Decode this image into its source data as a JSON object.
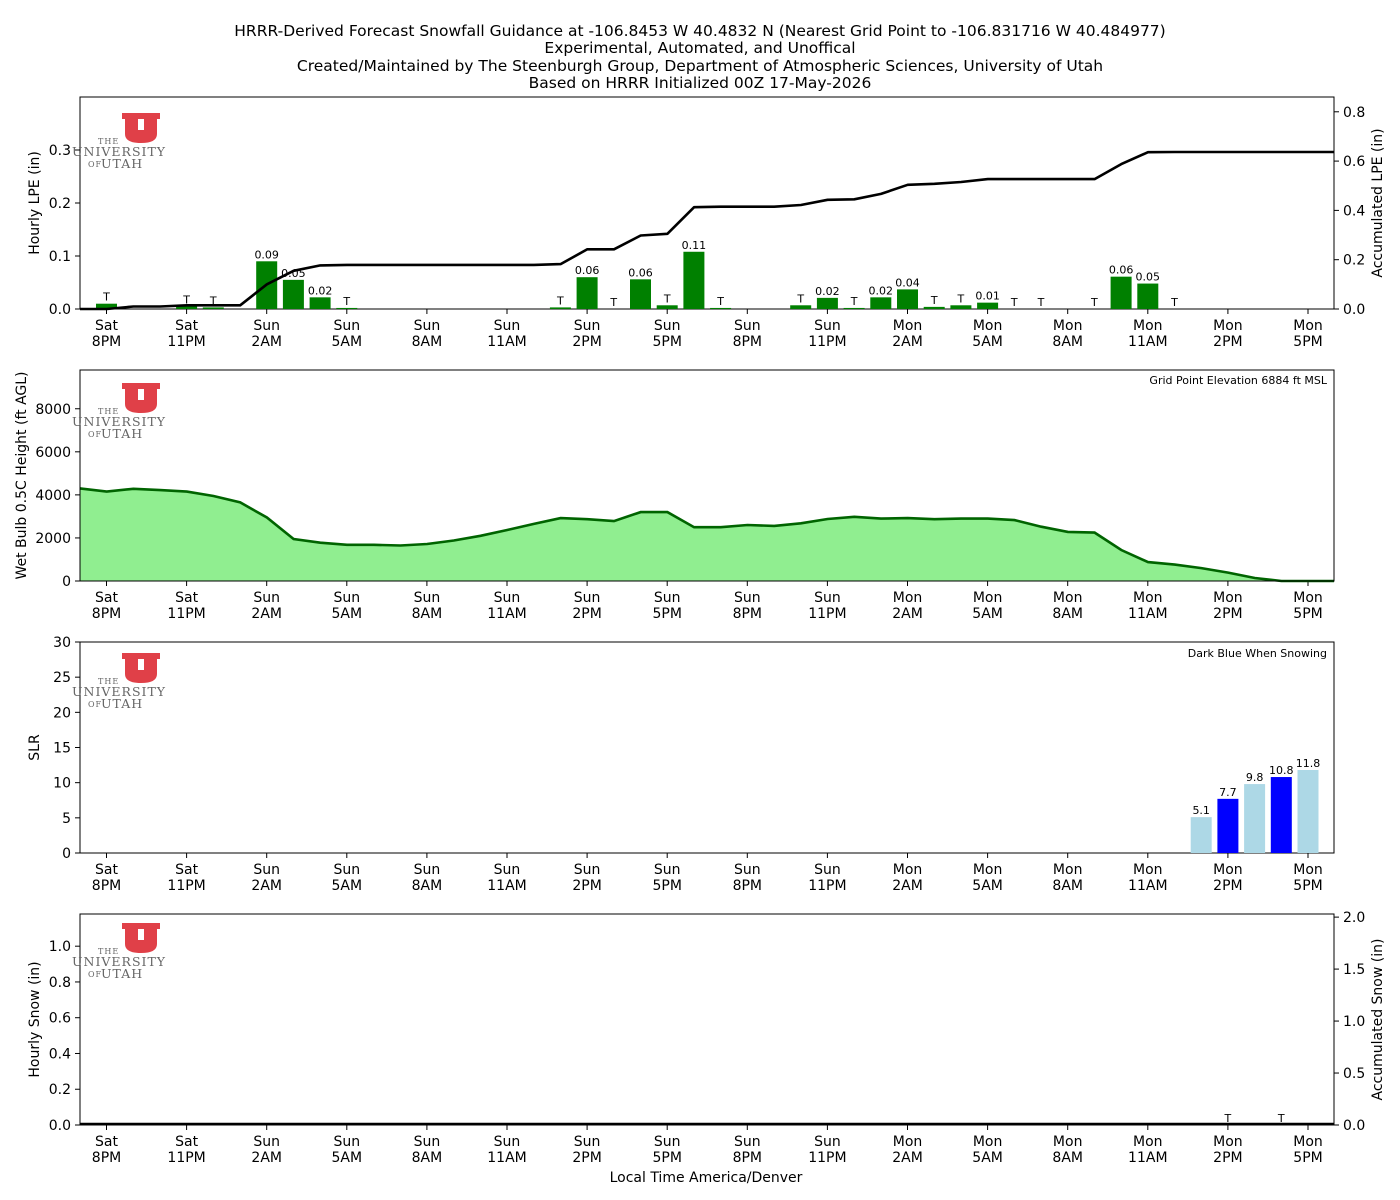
{
  "title_lines": [
    "HRRR-Derived Forecast Snowfall Guidance at -106.8453 W 40.4832 N (Nearest Grid Point to -106.831716 W 40.484977)",
    "Experimental, Automated, and Unoffical",
    "Created/Maintained by The Steenburgh Group, Department of Atmospheric Sciences, University of Utah",
    "Based on HRRR Initialized 00Z 17-May-2026"
  ],
  "logo": {
    "text_the": "THE",
    "text_university": "UNIVERSITY",
    "text_of": "OF",
    "text_utah": "UTAH",
    "color": "#e04048"
  },
  "x_tick_labels": [
    [
      "Sat",
      "8PM"
    ],
    [
      "Sat",
      "11PM"
    ],
    [
      "Sun",
      "2AM"
    ],
    [
      "Sun",
      "5AM"
    ],
    [
      "Sun",
      "8AM"
    ],
    [
      "Sun",
      "11AM"
    ],
    [
      "Sun",
      "2PM"
    ],
    [
      "Sun",
      "5PM"
    ],
    [
      "Sun",
      "8PM"
    ],
    [
      "Sun",
      "11PM"
    ],
    [
      "Mon",
      "2AM"
    ],
    [
      "Mon",
      "5AM"
    ],
    [
      "Mon",
      "8AM"
    ],
    [
      "Mon",
      "11AM"
    ],
    [
      "Mon",
      "2PM"
    ],
    [
      "Mon",
      "5PM"
    ]
  ],
  "x_axis_label": "Local Time America/Denver",
  "colors": {
    "lpe_bar": "#008000",
    "wetbulb_fill": "#90ee90",
    "wetbulb_line": "#006400",
    "slr_light": "#add8e6",
    "slr_dark": "#0000ff"
  },
  "chart_data": [
    {
      "type": "bar",
      "panel": "hourly-lpe",
      "ylabel": "Hourly LPE (in)",
      "ylabel_right": "Accumulated LPE (in)",
      "ylim": [
        0,
        0.4
      ],
      "yticks": [
        "0.0",
        "0.1",
        "0.2",
        "0.3"
      ],
      "ylim_right": [
        0,
        0.86
      ],
      "yticks_right": [
        "0.0",
        "0.2",
        "0.4",
        "0.6",
        "0.8"
      ],
      "hour_index": [
        1,
        4,
        5,
        7,
        8,
        9,
        10,
        11,
        18,
        19,
        20,
        21,
        22,
        23,
        24,
        27,
        28,
        29,
        30,
        31,
        32,
        33,
        34,
        35,
        36,
        38,
        39,
        40,
        41,
        42,
        43,
        44,
        45,
        46,
        50,
        51,
        57,
        59
      ],
      "values": [
        0.01,
        0.005,
        0.003,
        0.09,
        0.055,
        0.022,
        0.002,
        0.0,
        0.003,
        0.06,
        0.0,
        0.056,
        0.007,
        0.108,
        0.002,
        0.007,
        0.021,
        0.002,
        0.022,
        0.037,
        0.004,
        0.007,
        0.012,
        0.0,
        0.0,
        0.0,
        0.061,
        0.048,
        0.0,
        0.0,
        0.0,
        0.0,
        0.0,
        0.0,
        0.0,
        0.0,
        0.0,
        0.0
      ],
      "labels": [
        "T",
        "T",
        "T",
        "0.09",
        "0.05",
        "0.02",
        "T",
        "",
        "T",
        "0.06",
        "T",
        "0.06",
        "T",
        "0.11",
        "T",
        "T",
        "0.02",
        "T",
        "0.02",
        "0.04",
        "T",
        "T",
        "0.01",
        "T",
        "T",
        "T",
        "0.06",
        "0.05",
        "T",
        "",
        "",
        "",
        "",
        "",
        "",
        "",
        "T",
        "T"
      ],
      "label_hours": [
        1,
        4,
        5,
        7,
        8,
        9,
        10,
        18,
        19,
        20,
        21,
        22,
        23,
        24,
        27,
        28,
        29,
        30,
        31,
        32,
        33,
        34,
        35,
        36,
        38,
        39,
        40,
        41,
        59,
        61
      ],
      "label_texts": [
        "T",
        "T",
        "T",
        "0.09",
        "0.05",
        "0.02",
        "T",
        "T",
        "0.06",
        "T",
        "0.06",
        "T",
        "0.11",
        "T",
        "T",
        "0.02",
        "T",
        "0.02",
        "0.04",
        "T",
        "T",
        "0.01",
        "T",
        "T",
        "T",
        "0.06",
        "0.05",
        "T",
        "T",
        "T"
      ],
      "accum_line": [
        0,
        0,
        0.01,
        0.01,
        0.015,
        0.015,
        0.015,
        0.1,
        0.155,
        0.177,
        0.179,
        0.179,
        0.179,
        0.179,
        0.179,
        0.179,
        0.179,
        0.179,
        0.182,
        0.242,
        0.242,
        0.298,
        0.305,
        0.413,
        0.415,
        0.415,
        0.415,
        0.422,
        0.443,
        0.445,
        0.467,
        0.504,
        0.508,
        0.515,
        0.527,
        0.527,
        0.527,
        0.527,
        0.527,
        0.588,
        0.636,
        0.637,
        0.637,
        0.637,
        0.637,
        0.637,
        0.637,
        0.637,
        0.637
      ]
    },
    {
      "type": "area",
      "panel": "wetbulb-height",
      "ylabel": "Wet Bulb 0.5C Height (ft AGL)",
      "ylim": [
        0,
        9800
      ],
      "yticks": [
        "0",
        "2000",
        "4000",
        "6000",
        "8000"
      ],
      "annotation": "Grid Point Elevation 6884 ft MSL",
      "values": [
        4300,
        4150,
        4280,
        4220,
        4150,
        3950,
        3650,
        2950,
        1950,
        1780,
        1680,
        1680,
        1650,
        1720,
        1880,
        2100,
        2370,
        2650,
        2920,
        2870,
        2780,
        3200,
        3200,
        2500,
        2500,
        2600,
        2560,
        2680,
        2880,
        2980,
        2900,
        2920,
        2870,
        2900,
        2900,
        2830,
        2520,
        2280,
        2250,
        1440,
        880,
        760,
        600,
        390,
        140,
        -20,
        -20,
        -20,
        -20
      ]
    },
    {
      "type": "bar",
      "panel": "slr",
      "ylabel": "SLR",
      "ylim": [
        0,
        30
      ],
      "yticks": [
        "0",
        "5",
        "10",
        "15",
        "20",
        "25",
        "30"
      ],
      "annotation": "Dark Blue When Snowing",
      "hour_index": [
        42,
        43,
        44,
        45,
        46
      ],
      "values": [
        5.1,
        7.7,
        9.8,
        10.8,
        11.8
      ],
      "labels": [
        "5.1",
        "7.7",
        "9.8",
        "10.8",
        "11.8"
      ],
      "snowing": [
        false,
        true,
        false,
        true,
        false
      ]
    },
    {
      "type": "bar",
      "panel": "hourly-snow",
      "ylabel": "Hourly Snow (in)",
      "ylabel_right": "Accumulated Snow (in)",
      "ylim": [
        0,
        1.18
      ],
      "yticks": [
        "0.0",
        "0.2",
        "0.4",
        "0.6",
        "0.8",
        "1.0"
      ],
      "ylim_right": [
        0,
        2.03
      ],
      "yticks_right": [
        "0.0",
        "0.5",
        "1.0",
        "1.5",
        "2.0"
      ],
      "label_hours": [
        43,
        45
      ],
      "label_texts": [
        "T",
        "T"
      ],
      "accum_line": [
        0,
        0
      ]
    }
  ]
}
